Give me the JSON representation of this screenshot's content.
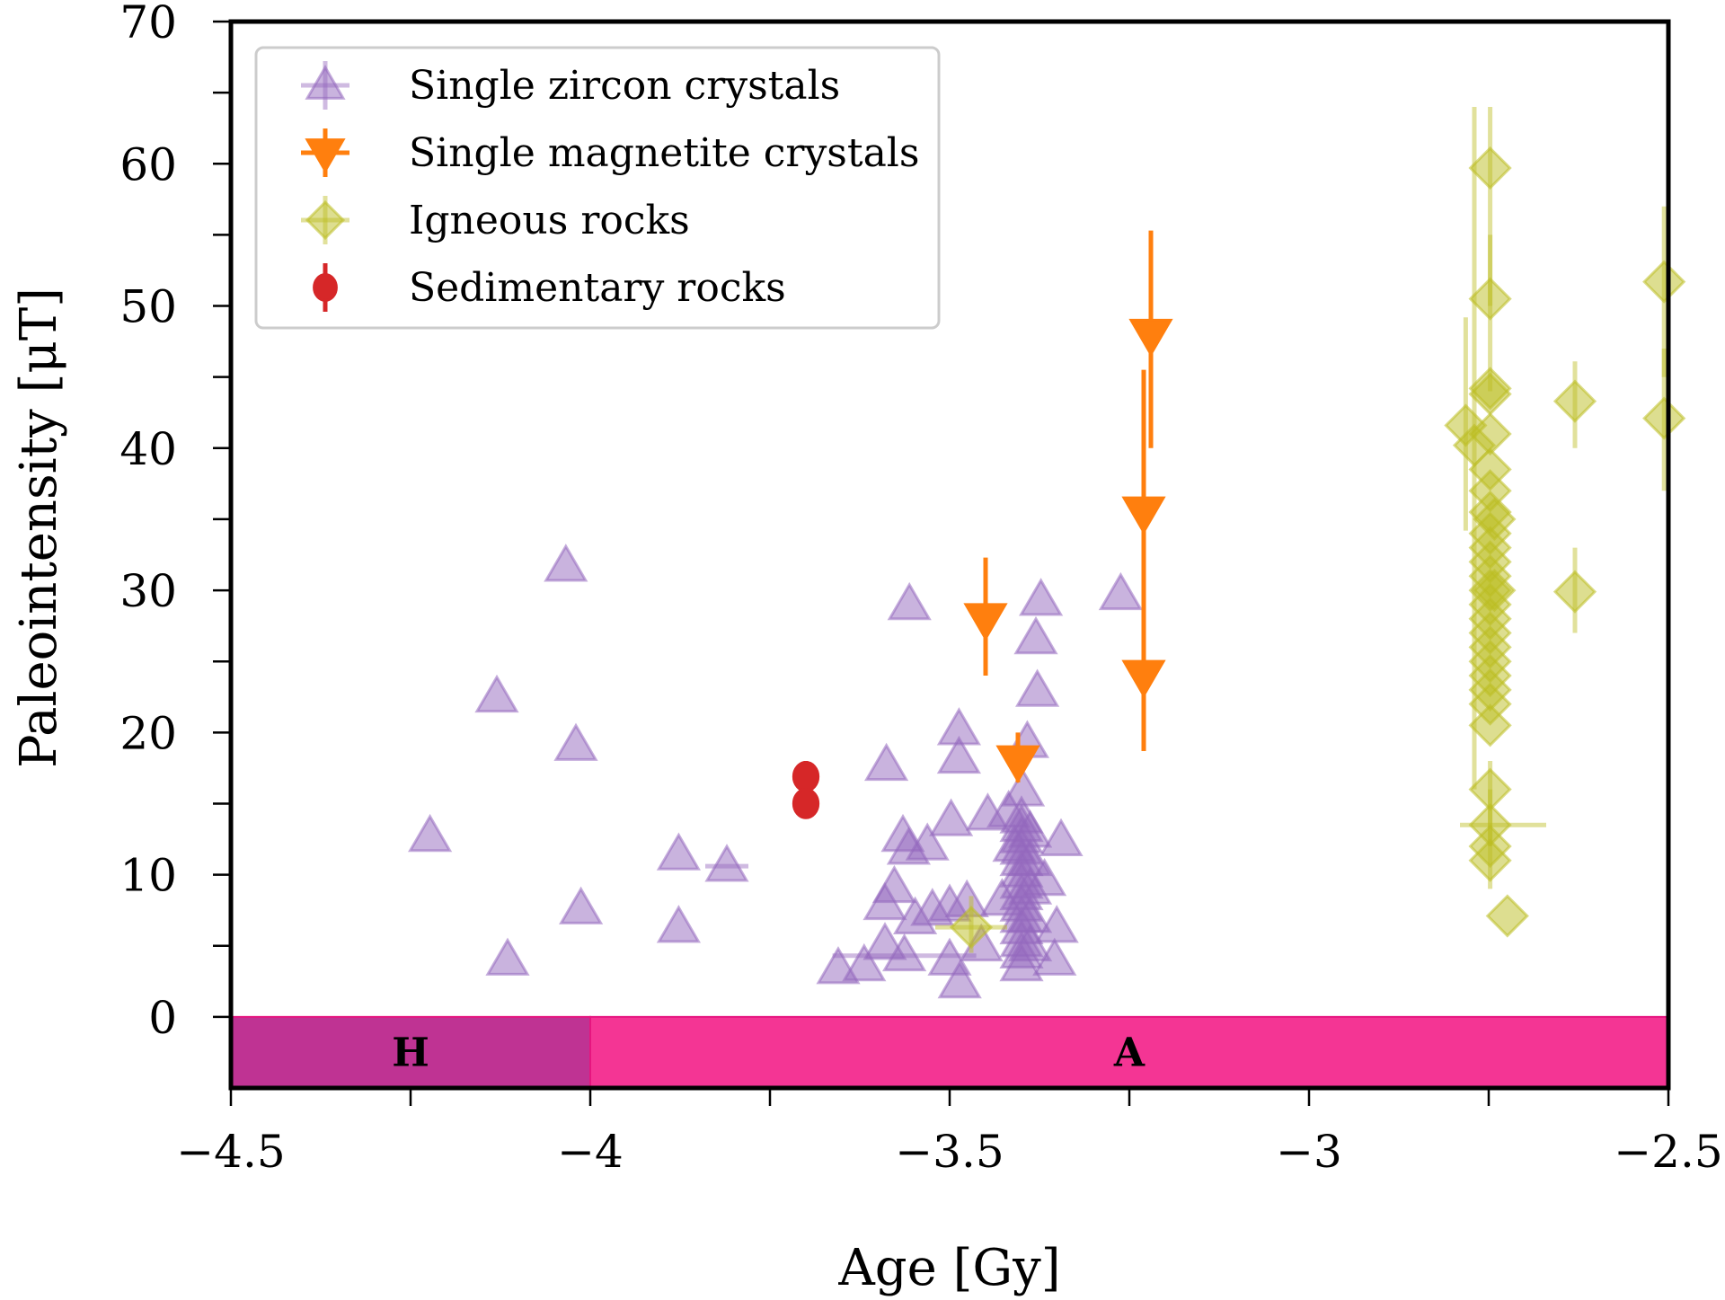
{
  "chart_data": {
    "type": "scatter",
    "title": "",
    "xlabel": "Age [Gy]",
    "ylabel": "Paleointensity [μT]",
    "xlim": [
      -4.5,
      -2.5
    ],
    "ylim": [
      -5,
      70
    ],
    "xticks": [
      -4.5,
      -4,
      -3.5,
      -3,
      -2.5
    ],
    "xtick_labels": [
      "−4.5",
      "−4",
      "−3.5",
      "−3",
      "−2.5"
    ],
    "xminor_ticks": [
      -4.25,
      -3.75,
      -3.25,
      -2.75
    ],
    "yticks": [
      0,
      10,
      20,
      30,
      40,
      50,
      60,
      70
    ],
    "ytick_labels": [
      "0",
      "10",
      "20",
      "30",
      "40",
      "50",
      "60",
      "70"
    ],
    "yminor_ticks": [
      5,
      15,
      25,
      35,
      45,
      55,
      65
    ],
    "grid": false,
    "legend_position": "top-left",
    "eon_bands": [
      {
        "label": "H",
        "x": [
          -4.5,
          -4.0
        ],
        "y": [
          -5,
          0
        ],
        "color": "#bf3393"
      },
      {
        "label": "A",
        "x": [
          -4.0,
          -2.5
        ],
        "y": [
          -5,
          0
        ],
        "color": "#f43594"
      }
    ],
    "series": [
      {
        "name": "Single zircon crystals",
        "marker": "triangle-up",
        "color": "#9467bd",
        "alpha": 0.5,
        "points": [
          {
            "x": -4.223,
            "y": 12.7
          },
          {
            "x": -4.115,
            "y": 4.0
          },
          {
            "x": -4.13,
            "y": 22.5
          },
          {
            "x": -4.034,
            "y": 31.7
          },
          {
            "x": -4.02,
            "y": 19.1
          },
          {
            "x": -4.013,
            "y": 7.6
          },
          {
            "x": -3.877,
            "y": 11.4
          },
          {
            "x": -3.877,
            "y": 6.3
          },
          {
            "x": -3.81,
            "y": 10.6,
            "xerr": 0.03
          },
          {
            "x": -3.655,
            "y": 3.4
          },
          {
            "x": -3.619,
            "y": 3.6
          },
          {
            "x": -3.588,
            "y": 17.7
          },
          {
            "x": -3.556,
            "y": 29.0
          },
          {
            "x": -3.487,
            "y": 20.2
          },
          {
            "x": -3.487,
            "y": 18.2
          },
          {
            "x": -3.392,
            "y": 19.3
          },
          {
            "x": -3.398,
            "y": 15.9
          },
          {
            "x": -3.498,
            "y": 13.8
          },
          {
            "x": -3.447,
            "y": 14.2
          },
          {
            "x": -3.418,
            "y": 14.4
          },
          {
            "x": -3.565,
            "y": 12.7
          },
          {
            "x": -3.557,
            "y": 11.8
          },
          {
            "x": -3.531,
            "y": 12.1
          },
          {
            "x": -3.345,
            "y": 12.4
          },
          {
            "x": -3.577,
            "y": 9.1
          },
          {
            "x": -3.59,
            "y": 7.9
          },
          {
            "x": -3.548,
            "y": 6.9
          },
          {
            "x": -3.524,
            "y": 7.5
          },
          {
            "x": -3.5,
            "y": 7.8
          },
          {
            "x": -3.476,
            "y": 8.1
          },
          {
            "x": -3.427,
            "y": 8.2
          },
          {
            "x": -3.368,
            "y": 9.6
          },
          {
            "x": -3.351,
            "y": 6.3
          },
          {
            "x": -3.59,
            "y": 5.1
          },
          {
            "x": -3.563,
            "y": 4.3,
            "xerr": 0.1
          },
          {
            "x": -3.5,
            "y": 4.0
          },
          {
            "x": -3.456,
            "y": 5.0
          },
          {
            "x": -3.486,
            "y": 2.4
          },
          {
            "x": -3.354,
            "y": 4.0
          },
          {
            "x": -3.373,
            "y": 29.3
          },
          {
            "x": -3.38,
            "y": 26.6
          },
          {
            "x": -3.378,
            "y": 22.9
          },
          {
            "x": -3.262,
            "y": 29.7
          },
          {
            "x": -3.4,
            "y": 3.6
          },
          {
            "x": -3.4,
            "y": 4.5
          },
          {
            "x": -3.4,
            "y": 5.3
          },
          {
            "x": -3.4,
            "y": 6.2
          },
          {
            "x": -3.4,
            "y": 7.0
          },
          {
            "x": -3.4,
            "y": 7.8
          },
          {
            "x": -3.4,
            "y": 8.6
          },
          {
            "x": -3.4,
            "y": 9.4
          },
          {
            "x": -3.4,
            "y": 10.2
          },
          {
            "x": -3.4,
            "y": 11.0
          },
          {
            "x": -3.4,
            "y": 11.8
          },
          {
            "x": -3.4,
            "y": 12.6
          },
          {
            "x": -3.4,
            "y": 13.4
          },
          {
            "x": -3.4,
            "y": 14.0
          },
          {
            "x": -3.388,
            "y": 5.0
          },
          {
            "x": -3.388,
            "y": 7.0
          },
          {
            "x": -3.388,
            "y": 9.0
          },
          {
            "x": -3.388,
            "y": 11.0
          },
          {
            "x": -3.388,
            "y": 13.0
          },
          {
            "x": -3.41,
            "y": 12.0
          }
        ]
      },
      {
        "name": "Single magnetite crystals",
        "marker": "triangle-down",
        "color": "#ff7f0e",
        "alpha": 1.0,
        "points": [
          {
            "x": -3.45,
            "y": 28.0,
            "ylo": 24.0,
            "yhi": 32.3
          },
          {
            "x": -3.405,
            "y": 18.0,
            "ylo": 16.5,
            "yhi": 20.0
          },
          {
            "x": -3.23,
            "y": 35.5,
            "ylo": 18.7,
            "yhi": 45.5
          },
          {
            "x": -3.23,
            "y": 24.0,
            "ylo": 18.7,
            "yhi": 45.5
          },
          {
            "x": -3.22,
            "y": 48.0,
            "ylo": 40.0,
            "yhi": 55.3
          }
        ]
      },
      {
        "name": "Igneous rocks",
        "marker": "diamond",
        "color": "#bcbd22",
        "alpha": 0.5,
        "points": [
          {
            "x": -3.47,
            "y": 6.3,
            "xerr": 0.05,
            "ylo": 4.5,
            "yhi": 8.5
          },
          {
            "x": -2.748,
            "y": 59.7,
            "ylo": 50,
            "yhi": 64
          },
          {
            "x": -2.748,
            "y": 50.5,
            "ylo": 44,
            "yhi": 55
          },
          {
            "x": -2.748,
            "y": 44.2
          },
          {
            "x": -2.748,
            "y": 43.8
          },
          {
            "x": -2.748,
            "y": 41.0
          },
          {
            "x": -2.748,
            "y": 38.5
          },
          {
            "x": -2.748,
            "y": 37.0
          },
          {
            "x": -2.748,
            "y": 35.5
          },
          {
            "x": -2.748,
            "y": 34.0
          },
          {
            "x": -2.748,
            "y": 33.0
          },
          {
            "x": -2.748,
            "y": 32.0
          },
          {
            "x": -2.748,
            "y": 31.0
          },
          {
            "x": -2.748,
            "y": 30.0
          },
          {
            "x": -2.748,
            "y": 29.0
          },
          {
            "x": -2.748,
            "y": 28.0
          },
          {
            "x": -2.748,
            "y": 27.0
          },
          {
            "x": -2.748,
            "y": 26.0
          },
          {
            "x": -2.748,
            "y": 25.0
          },
          {
            "x": -2.748,
            "y": 24.0
          },
          {
            "x": -2.748,
            "y": 23.0
          },
          {
            "x": -2.748,
            "y": 22.0
          },
          {
            "x": -2.748,
            "y": 20.5
          },
          {
            "x": -2.742,
            "y": 30.0
          },
          {
            "x": -2.742,
            "y": 35.0
          },
          {
            "x": -2.748,
            "y": 16.0,
            "ylo": 12,
            "yhi": 18
          },
          {
            "x": -2.748,
            "y": 13.5,
            "xlo": -2.79,
            "xhi": -2.67
          },
          {
            "x": -2.748,
            "y": 12.0
          },
          {
            "x": -2.748,
            "y": 11.0,
            "ylo": 9,
            "yhi": 16
          },
          {
            "x": -2.724,
            "y": 7.1
          },
          {
            "x": -2.782,
            "y": 41.6,
            "ylo": 34.2,
            "yhi": 49.2
          },
          {
            "x": -2.77,
            "y": 40.2,
            "ylo": 16,
            "yhi": 64
          },
          {
            "x": -2.63,
            "y": 43.3,
            "ylo": 40.0,
            "yhi": 46.1
          },
          {
            "x": -2.63,
            "y": 29.9,
            "ylo": 27.0,
            "yhi": 33.0
          },
          {
            "x": -2.506,
            "y": 51.7,
            "ylo": 45,
            "yhi": 57
          },
          {
            "x": -2.506,
            "y": 42.1,
            "ylo": 37,
            "yhi": 47
          }
        ]
      },
      {
        "name": "Sedimentary rocks",
        "marker": "circle",
        "color": "#d62728",
        "alpha": 1.0,
        "points": [
          {
            "x": -3.7,
            "y": 16.9,
            "ylo": 16.0,
            "yhi": 18.0
          },
          {
            "x": -3.7,
            "y": 15.0,
            "ylo": 14.0,
            "yhi": 16.0
          }
        ]
      }
    ]
  }
}
